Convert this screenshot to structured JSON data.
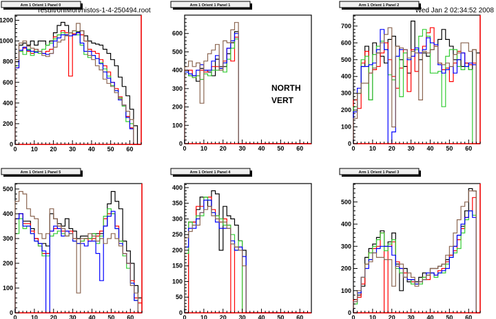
{
  "header": {
    "filename": "result/onlMon/histos-1-4-250494.root",
    "datetime": "Wed Jan  2 02:34:52 2008"
  },
  "annotations": [
    "NORTH",
    "VERT"
  ],
  "series_colors": [
    "#000000",
    "#ff0000",
    "#33cc33",
    "#0000ff",
    "#8b6651"
  ],
  "chart_data": [
    {
      "type": "histogram",
      "title": "Arm 1 Orient 1 Panel 0",
      "bin_width": 2,
      "xlim": [
        0,
        66
      ],
      "ylim": [
        0,
        1250
      ],
      "grid": false,
      "xticks": [
        "0",
        "10",
        "20",
        "30",
        "40",
        "50",
        "60"
      ],
      "yticks": [
        "0",
        "200",
        "400",
        "600",
        "800",
        "1000",
        "1200"
      ],
      "ytick_step": 200,
      "series": [
        {
          "values": [
            800,
            960,
            980,
            960,
            1000,
            960,
            1000,
            1000,
            960,
            1000,
            1080,
            1150,
            1180,
            1150,
            1080,
            1060,
            1090,
            1100,
            1050,
            1000,
            980,
            970,
            960,
            920,
            880,
            820,
            760,
            650,
            560,
            470,
            340,
            180,
            0
          ]
        },
        {
          "values": [
            740,
            900,
            930,
            900,
            880,
            920,
            900,
            880,
            900,
            920,
            1040,
            1060,
            1100,
            1080,
            660,
            1070,
            1080,
            1060,
            1000,
            920,
            900,
            880,
            820,
            760,
            700,
            600,
            540,
            460,
            380,
            270,
            160,
            0,
            0
          ]
        },
        {
          "values": [
            760,
            900,
            870,
            920,
            860,
            900,
            880,
            920,
            960,
            980,
            1020,
            1060,
            1080,
            1060,
            1080,
            1100,
            1060,
            960,
            870,
            840,
            860,
            830,
            790,
            730,
            660,
            570,
            520,
            450,
            370,
            220,
            200,
            0,
            0
          ]
        },
        {
          "values": [
            740,
            910,
            940,
            910,
            900,
            890,
            900,
            880,
            870,
            880,
            1000,
            1030,
            1060,
            1060,
            1050,
            1060,
            1080,
            980,
            900,
            900,
            860,
            830,
            780,
            700,
            640,
            600,
            520,
            430,
            380,
            260,
            150,
            0,
            0
          ]
        },
        {
          "values": [
            820,
            980,
            1000,
            950,
            930,
            920,
            900,
            860,
            850,
            880,
            940,
            990,
            1010,
            1050,
            1080,
            1100,
            1170,
            1100,
            1000,
            860,
            820,
            760,
            720,
            630,
            590,
            560,
            500,
            440,
            380,
            320,
            240,
            0,
            0
          ]
        }
      ]
    },
    {
      "type": "histogram",
      "title": "Arm 1 Orient 1 Panel 1",
      "bin_width": 2,
      "xlim": [
        0,
        66
      ],
      "ylim": [
        0,
        700
      ],
      "grid": false,
      "xticks": [
        "0",
        "10",
        "20",
        "30",
        "40",
        "50",
        "60"
      ],
      "yticks": [
        "0",
        "100",
        "200",
        "300",
        "400",
        "500",
        "600"
      ],
      "ytick_step": 100,
      "series": [
        {
          "values": [
            400,
            370,
            370,
            340,
            410,
            400,
            390,
            370,
            460,
            420,
            420,
            490,
            550,
            610
          ]
        },
        {
          "values": [
            400,
            400,
            360,
            370,
            400,
            390,
            400,
            420,
            420,
            410,
            450,
            520,
            450,
            580
          ]
        },
        {
          "values": [
            390,
            370,
            360,
            370,
            350,
            380,
            370,
            400,
            400,
            410,
            390,
            460,
            520,
            570
          ]
        },
        {
          "values": [
            390,
            380,
            370,
            400,
            430,
            400,
            400,
            450,
            480,
            410,
            440,
            520,
            560,
            600
          ]
        },
        {
          "values": [
            420,
            450,
            420,
            440,
            220,
            450,
            490,
            510,
            540,
            400,
            560,
            550,
            620,
            660
          ]
        }
      ]
    },
    {
      "type": "histogram",
      "title": "Arm 1 Orient 1 Panel 2",
      "bin_width": 2,
      "xlim": [
        0,
        66
      ],
      "ylim": [
        0,
        765
      ],
      "grid": false,
      "xticks": [
        "0",
        "10",
        "20",
        "30",
        "40",
        "50",
        "60"
      ],
      "yticks": [
        "0",
        "100",
        "200",
        "300",
        "400",
        "500",
        "600",
        "700"
      ],
      "ytick_step": 100,
      "series": [
        {
          "values": [
            260,
            300,
            460,
            580,
            260,
            600,
            540,
            520,
            480,
            620,
            640,
            580,
            500,
            460,
            420,
            730,
            560,
            500,
            540,
            520,
            560,
            580,
            620,
            680,
            620,
            580,
            500,
            500,
            460,
            480,
            440,
            560,
            540
          ]
        },
        {
          "values": [
            260,
            210,
            480,
            550,
            420,
            440,
            460,
            540,
            600,
            500,
            400,
            330,
            450,
            560,
            310,
            560,
            430,
            540,
            580,
            660,
            690,
            580,
            480,
            440,
            450,
            370,
            480,
            550,
            540,
            480,
            470,
            480,
            0
          ]
        },
        {
          "values": [
            220,
            300,
            500,
            520,
            260,
            530,
            580,
            610,
            560,
            410,
            380,
            520,
            280,
            540,
            500,
            550,
            560,
            640,
            680,
            640,
            420,
            420,
            430,
            220,
            520,
            560,
            560,
            460,
            440,
            460,
            440,
            0,
            0
          ]
        },
        {
          "values": [
            190,
            330,
            460,
            460,
            470,
            480,
            560,
            680,
            560,
            0,
            70,
            520,
            560,
            560,
            500,
            520,
            570,
            540,
            560,
            630,
            600,
            590,
            470,
            420,
            440,
            460,
            420,
            500,
            540,
            460,
            480,
            470,
            0
          ]
        },
        {
          "values": [
            150,
            300,
            360,
            360,
            420,
            450,
            540,
            600,
            650,
            690,
            100,
            580,
            570,
            560,
            510,
            550,
            540,
            260,
            550,
            540,
            560,
            580,
            480,
            470,
            480,
            460,
            530,
            540,
            600,
            600,
            550,
            560,
            0
          ]
        }
      ]
    },
    {
      "type": "histogram",
      "title": "Arm 1 Orient 1 Panel 5",
      "bin_width": 2,
      "xlim": [
        0,
        66
      ],
      "ylim": [
        0,
        522
      ],
      "grid": false,
      "xticks": [
        "0",
        "10",
        "20",
        "30",
        "40",
        "50",
        "60"
      ],
      "yticks": [
        "0",
        "100",
        "200",
        "300",
        "400",
        "500"
      ],
      "ytick_step": 100,
      "series": [
        {
          "values": [
            380,
            400,
            370,
            370,
            340,
            300,
            280,
            280,
            270,
            400,
            380,
            360,
            350,
            380,
            340,
            330,
            300,
            310,
            310,
            300,
            320,
            320,
            320,
            350,
            440,
            490,
            450,
            420,
            290,
            250,
            200,
            110,
            60
          ]
        },
        {
          "values": [
            380,
            400,
            360,
            360,
            330,
            300,
            270,
            240,
            240,
            330,
            340,
            350,
            330,
            330,
            330,
            300,
            280,
            290,
            300,
            290,
            300,
            310,
            330,
            380,
            400,
            400,
            350,
            290,
            240,
            200,
            130,
            60,
            40
          ]
        },
        {
          "values": [
            320,
            380,
            340,
            350,
            320,
            290,
            270,
            230,
            230,
            310,
            320,
            330,
            320,
            310,
            320,
            290,
            280,
            290,
            300,
            300,
            320,
            280,
            310,
            390,
            420,
            400,
            340,
            290,
            230,
            180,
            120,
            50,
            0
          ]
        },
        {
          "values": [
            380,
            400,
            350,
            350,
            320,
            290,
            280,
            250,
            0,
            330,
            350,
            340,
            310,
            330,
            320,
            290,
            280,
            280,
            270,
            290,
            290,
            240,
            130,
            350,
            390,
            410,
            340,
            280,
            240,
            200,
            120,
            50,
            0
          ]
        },
        {
          "values": [
            450,
            490,
            480,
            420,
            390,
            380,
            320,
            300,
            320,
            420,
            380,
            350,
            340,
            310,
            320,
            300,
            80,
            300,
            300,
            320,
            310,
            290,
            300,
            280,
            300,
            320,
            300,
            270,
            240,
            200,
            110,
            80,
            0
          ]
        }
      ]
    },
    {
      "type": "histogram",
      "title": "Arm 1 Orient 1 Panel 4",
      "bin_width": 2,
      "xlim": [
        0,
        66
      ],
      "ylim": [
        0,
        413
      ],
      "grid": false,
      "xticks": [
        "0",
        "10",
        "20",
        "30",
        "40",
        "50",
        "60"
      ],
      "yticks": [
        "0",
        "50",
        "100",
        "150",
        "200",
        "250",
        "300",
        "350",
        "400"
      ],
      "ytick_step": 50,
      "series": [
        {
          "values": [
            0,
            290,
            290,
            330,
            370,
            370,
            340,
            390,
            380,
            200,
            340,
            310,
            300,
            280,
            230,
            200
          ]
        },
        {
          "values": [
            0,
            290,
            290,
            340,
            340,
            370,
            370,
            330,
            310,
            290,
            300,
            280,
            0,
            210,
            210,
            0
          ]
        },
        {
          "values": [
            190,
            290,
            280,
            310,
            310,
            370,
            360,
            320,
            310,
            300,
            280,
            280,
            250,
            200,
            230,
            0
          ]
        },
        {
          "values": [
            210,
            270,
            270,
            300,
            320,
            360,
            360,
            320,
            290,
            270,
            270,
            270,
            230,
            200,
            210,
            180
          ]
        },
        {
          "values": [
            240,
            260,
            280,
            280,
            320,
            330,
            340,
            310,
            300,
            290,
            290,
            270,
            220,
            210,
            200,
            150
          ]
        }
      ]
    },
    {
      "type": "histogram",
      "title": "Arm 1 Orient 1 Panel 3",
      "bin_width": 2,
      "xlim": [
        0,
        66
      ],
      "ylim": [
        0,
        583
      ],
      "grid": false,
      "xticks": [
        "0",
        "10",
        "20",
        "30",
        "40",
        "50",
        "60"
      ],
      "yticks": [
        "0",
        "100",
        "200",
        "300",
        "400",
        "500"
      ],
      "ytick_step": 100,
      "series": [
        {
          "values": [
            60,
            80,
            120,
            250,
            290,
            310,
            340,
            370,
            300,
            320,
            360,
            220,
            100,
            200,
            140,
            150,
            140,
            160,
            180,
            170,
            200,
            200,
            210,
            220,
            240,
            260,
            300,
            350,
            390,
            460,
            560,
            550,
            0
          ]
        },
        {
          "values": [
            60,
            70,
            130,
            220,
            270,
            290,
            300,
            360,
            0,
            300,
            320,
            230,
            200,
            180,
            150,
            140,
            130,
            140,
            160,
            150,
            180,
            170,
            190,
            200,
            230,
            260,
            280,
            330,
            380,
            430,
            460,
            520,
            0
          ]
        },
        {
          "values": [
            40,
            90,
            160,
            220,
            270,
            300,
            330,
            360,
            280,
            310,
            330,
            200,
            180,
            160,
            150,
            130,
            130,
            130,
            160,
            170,
            180,
            160,
            180,
            180,
            220,
            250,
            270,
            290,
            360,
            420,
            460,
            440,
            0
          ]
        },
        {
          "values": [
            50,
            90,
            160,
            200,
            240,
            270,
            290,
            300,
            300,
            300,
            260,
            210,
            200,
            160,
            150,
            150,
            130,
            140,
            150,
            180,
            180,
            170,
            180,
            190,
            200,
            250,
            300,
            350,
            400,
            430,
            460,
            430,
            0
          ]
        },
        {
          "values": [
            50,
            100,
            160,
            220,
            230,
            270,
            250,
            250,
            240,
            240,
            120,
            210,
            220,
            160,
            180,
            160,
            120,
            140,
            150,
            170,
            200,
            200,
            210,
            220,
            260,
            300,
            360,
            420,
            480,
            500,
            550,
            550,
            0
          ]
        }
      ]
    }
  ]
}
